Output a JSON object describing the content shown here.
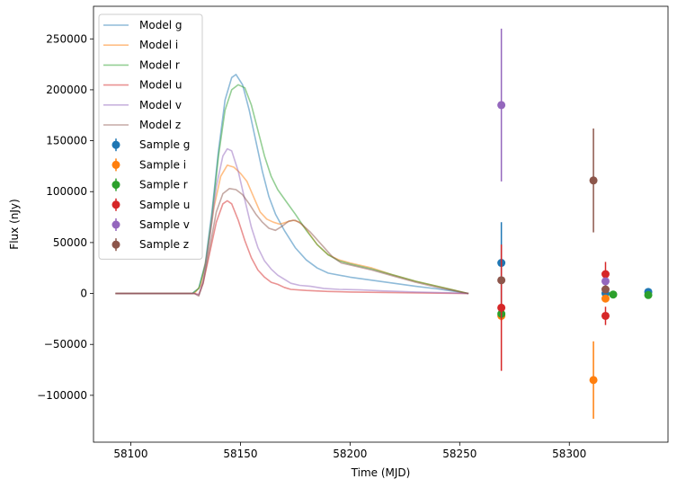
{
  "chart_data": {
    "type": "line",
    "title": "",
    "xlabel": "Time (MJD)",
    "ylabel": "Flux (nJy)",
    "xlim": [
      58083,
      58345
    ],
    "ylim": [
      -146000,
      282000
    ],
    "xticks": [
      58100,
      58150,
      58200,
      58250,
      58300
    ],
    "yticks": [
      -100000,
      -50000,
      0,
      50000,
      100000,
      150000,
      200000,
      250000
    ],
    "grid": false,
    "legend_position": "top-left",
    "model_series": [
      {
        "name": "Model g",
        "color": "#1f77b4",
        "points": [
          [
            58093,
            0
          ],
          [
            58128,
            0
          ],
          [
            58131,
            5000
          ],
          [
            58134,
            30000
          ],
          [
            58137,
            80000
          ],
          [
            58140,
            140000
          ],
          [
            58143,
            190000
          ],
          [
            58146,
            212000
          ],
          [
            58148,
            215000
          ],
          [
            58151,
            205000
          ],
          [
            58154,
            180000
          ],
          [
            58157,
            150000
          ],
          [
            58160,
            120000
          ],
          [
            58163,
            95000
          ],
          [
            58166,
            78000
          ],
          [
            58170,
            62000
          ],
          [
            58175,
            45000
          ],
          [
            58180,
            33000
          ],
          [
            58185,
            25000
          ],
          [
            58190,
            20000
          ],
          [
            58200,
            16000
          ],
          [
            58210,
            13000
          ],
          [
            58220,
            10000
          ],
          [
            58230,
            7000
          ],
          [
            58240,
            4500
          ],
          [
            58248,
            2000
          ],
          [
            58254,
            0
          ]
        ]
      },
      {
        "name": "Model i",
        "color": "#ff7f0e",
        "points": [
          [
            58093,
            0
          ],
          [
            58129,
            0
          ],
          [
            58132,
            8000
          ],
          [
            58135,
            40000
          ],
          [
            58138,
            85000
          ],
          [
            58141,
            115000
          ],
          [
            58144,
            126000
          ],
          [
            58147,
            124000
          ],
          [
            58150,
            118000
          ],
          [
            58153,
            110000
          ],
          [
            58156,
            95000
          ],
          [
            58159,
            80000
          ],
          [
            58162,
            73000
          ],
          [
            58165,
            70000
          ],
          [
            58168,
            68000
          ],
          [
            58171,
            70000
          ],
          [
            58174,
            72000
          ],
          [
            58177,
            70000
          ],
          [
            58180,
            63000
          ],
          [
            58185,
            48000
          ],
          [
            58190,
            38000
          ],
          [
            58195,
            33000
          ],
          [
            58200,
            30000
          ],
          [
            58210,
            25000
          ],
          [
            58220,
            18000
          ],
          [
            58230,
            12000
          ],
          [
            58240,
            7000
          ],
          [
            58248,
            3000
          ],
          [
            58254,
            0
          ]
        ]
      },
      {
        "name": "Model r",
        "color": "#2ca02c",
        "points": [
          [
            58093,
            0
          ],
          [
            58128,
            0
          ],
          [
            58131,
            5000
          ],
          [
            58134,
            28000
          ],
          [
            58137,
            75000
          ],
          [
            58140,
            135000
          ],
          [
            58143,
            180000
          ],
          [
            58146,
            200000
          ],
          [
            58149,
            205000
          ],
          [
            58152,
            202000
          ],
          [
            58155,
            185000
          ],
          [
            58158,
            160000
          ],
          [
            58161,
            135000
          ],
          [
            58164,
            115000
          ],
          [
            58167,
            102000
          ],
          [
            58171,
            90000
          ],
          [
            58175,
            78000
          ],
          [
            58180,
            62000
          ],
          [
            58185,
            48000
          ],
          [
            58190,
            38000
          ],
          [
            58195,
            32000
          ],
          [
            58200,
            29000
          ],
          [
            58210,
            24000
          ],
          [
            58220,
            18000
          ],
          [
            58230,
            12000
          ],
          [
            58240,
            7000
          ],
          [
            58248,
            3000
          ],
          [
            58254,
            0
          ]
        ]
      },
      {
        "name": "Model u",
        "color": "#d62728",
        "points": [
          [
            58093,
            0
          ],
          [
            58129,
            0
          ],
          [
            58131,
            -1000
          ],
          [
            58133,
            10000
          ],
          [
            58136,
            40000
          ],
          [
            58139,
            70000
          ],
          [
            58142,
            88000
          ],
          [
            58144,
            91000
          ],
          [
            58146,
            88000
          ],
          [
            58149,
            72000
          ],
          [
            58152,
            52000
          ],
          [
            58155,
            35000
          ],
          [
            58158,
            23000
          ],
          [
            58161,
            16000
          ],
          [
            58164,
            11000
          ],
          [
            58167,
            9000
          ],
          [
            58170,
            6000
          ],
          [
            58173,
            4000
          ],
          [
            58180,
            3000
          ],
          [
            58190,
            2000
          ],
          [
            58200,
            1500
          ],
          [
            58220,
            800
          ],
          [
            58240,
            300
          ],
          [
            58254,
            0
          ]
        ]
      },
      {
        "name": "Model v",
        "color": "#9467bd",
        "points": [
          [
            58093,
            0
          ],
          [
            58129,
            0
          ],
          [
            58131,
            -1500
          ],
          [
            58133,
            12000
          ],
          [
            58136,
            55000
          ],
          [
            58139,
            105000
          ],
          [
            58142,
            135000
          ],
          [
            58144,
            142000
          ],
          [
            58146,
            140000
          ],
          [
            58149,
            120000
          ],
          [
            58152,
            92000
          ],
          [
            58155,
            65000
          ],
          [
            58158,
            45000
          ],
          [
            58161,
            32000
          ],
          [
            58164,
            24000
          ],
          [
            58167,
            18000
          ],
          [
            58170,
            14000
          ],
          [
            58173,
            10000
          ],
          [
            58177,
            8000
          ],
          [
            58182,
            7000
          ],
          [
            58188,
            5000
          ],
          [
            58195,
            4000
          ],
          [
            58205,
            3500
          ],
          [
            58215,
            2500
          ],
          [
            58230,
            1500
          ],
          [
            58245,
            700
          ],
          [
            58254,
            0
          ]
        ]
      },
      {
        "name": "Model z",
        "color": "#8c564b",
        "points": [
          [
            58093,
            0
          ],
          [
            58129,
            0
          ],
          [
            58131,
            -2500
          ],
          [
            58133,
            10000
          ],
          [
            58136,
            45000
          ],
          [
            58139,
            80000
          ],
          [
            58142,
            98000
          ],
          [
            58145,
            103000
          ],
          [
            58148,
            102000
          ],
          [
            58151,
            97000
          ],
          [
            58154,
            88000
          ],
          [
            58157,
            78000
          ],
          [
            58160,
            70000
          ],
          [
            58163,
            64000
          ],
          [
            58166,
            62000
          ],
          [
            58169,
            66000
          ],
          [
            58172,
            71000
          ],
          [
            58175,
            72000
          ],
          [
            58178,
            68000
          ],
          [
            58182,
            60000
          ],
          [
            58187,
            48000
          ],
          [
            58192,
            36000
          ],
          [
            58196,
            30000
          ],
          [
            58200,
            28000
          ],
          [
            58210,
            23000
          ],
          [
            58220,
            17000
          ],
          [
            58230,
            11000
          ],
          [
            58240,
            6000
          ],
          [
            58248,
            2500
          ],
          [
            58254,
            0
          ]
        ]
      }
    ],
    "sample_series": [
      {
        "name": "Sample g",
        "color": "#1f77b4",
        "points": [
          {
            "x": 58269,
            "y": 30000,
            "err": 40000
          },
          {
            "x": 58316.5,
            "y": 0,
            "err": 3000
          },
          {
            "x": 58336,
            "y": 1500,
            "err": 2000
          }
        ]
      },
      {
        "name": "Sample i",
        "color": "#ff7f0e",
        "points": [
          {
            "x": 58269,
            "y": -22000,
            "err": 5000
          },
          {
            "x": 58311,
            "y": -85000,
            "err": 38000
          },
          {
            "x": 58316.5,
            "y": -5000,
            "err": 3000
          }
        ]
      },
      {
        "name": "Sample r",
        "color": "#2ca02c",
        "points": [
          {
            "x": 58269,
            "y": -20000,
            "err": 5000
          },
          {
            "x": 58320,
            "y": -1000,
            "err": 2500
          },
          {
            "x": 58336,
            "y": -1500,
            "err": 2000
          }
        ]
      },
      {
        "name": "Sample u",
        "color": "#d62728",
        "points": [
          {
            "x": 58269,
            "y": -14000,
            "err": 62000
          },
          {
            "x": 58316.5,
            "y": 19000,
            "err": 12000
          },
          {
            "x": 58316.5,
            "y": -22000,
            "err": 9000
          }
        ]
      },
      {
        "name": "Sample v",
        "color": "#9467bd",
        "points": [
          {
            "x": 58269,
            "y": 185000,
            "err": 75000
          },
          {
            "x": 58316.5,
            "y": 12000,
            "err": 3000
          }
        ]
      },
      {
        "name": "Sample z",
        "color": "#8c564b",
        "points": [
          {
            "x": 58269,
            "y": 13000,
            "err": 2500
          },
          {
            "x": 58311,
            "y": 111000,
            "err": 51000
          },
          {
            "x": 58316.5,
            "y": 4000,
            "err": 2500
          }
        ]
      }
    ]
  }
}
